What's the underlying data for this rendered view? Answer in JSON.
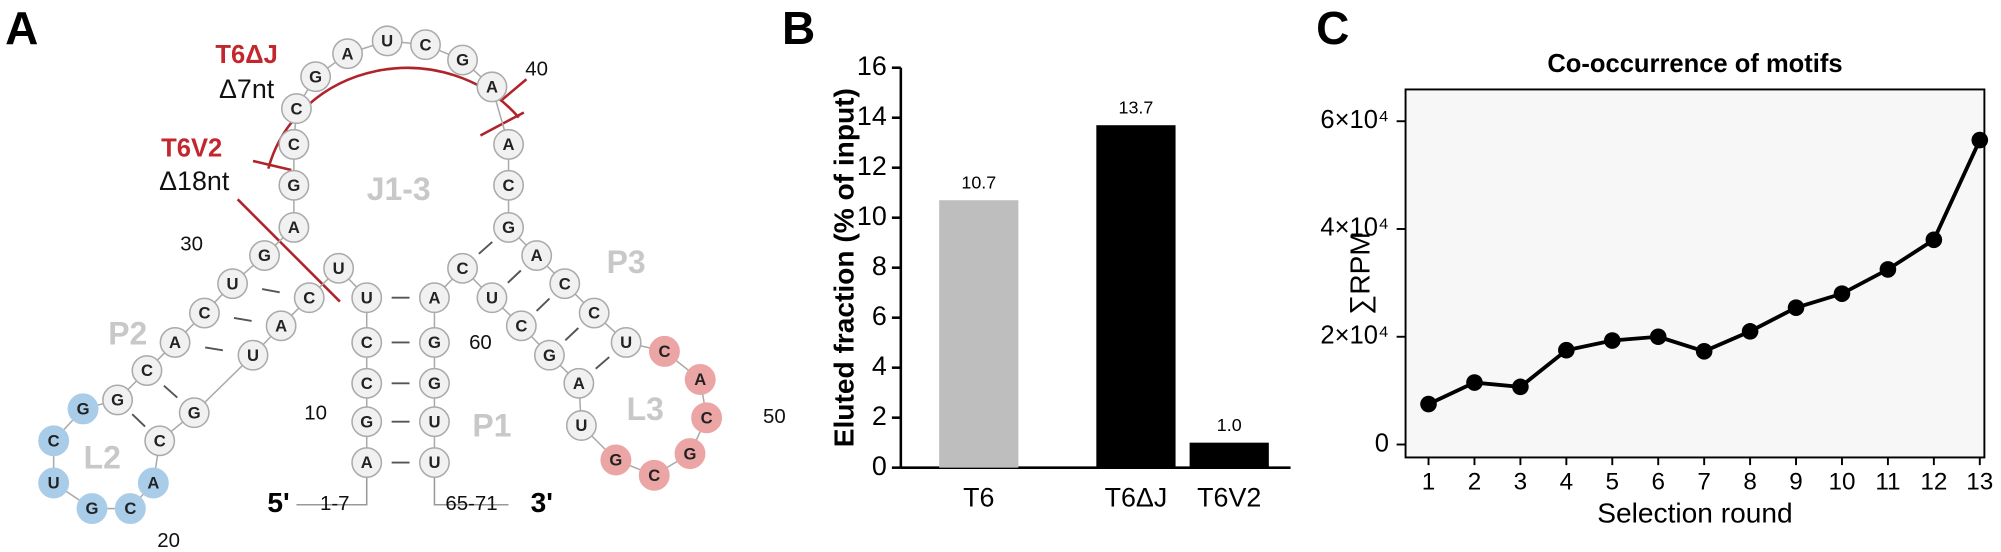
{
  "diagram": {
    "panel": "A",
    "constructs": [
      {
        "name": "T6ΔJ",
        "deletion": "Δ7nt"
      },
      {
        "name": "T6V2",
        "deletion": "Δ18nt"
      }
    ],
    "regions": [
      "J1-3",
      "P1",
      "P2",
      "P3",
      "L2",
      "L3"
    ],
    "ends": [
      "5'",
      "3'"
    ],
    "end_ranges": [
      "1-7",
      "65-71"
    ],
    "position_labels": [
      "10",
      "20",
      "30",
      "40",
      "50",
      "60"
    ],
    "nucleotides": [
      {
        "base": "A"
      },
      {
        "base": "G"
      },
      {
        "base": "C"
      },
      {
        "base": "C"
      },
      {
        "base": "U"
      },
      {
        "base": "U"
      },
      {
        "base": "C"
      },
      {
        "base": "A"
      },
      {
        "base": "U"
      },
      {
        "base": "G"
      },
      {
        "base": "C"
      },
      {
        "base": "A",
        "color": "#a9cde9"
      },
      {
        "base": "C",
        "color": "#a9cde9"
      },
      {
        "base": "G",
        "color": "#a9cde9"
      },
      {
        "base": "U",
        "color": "#a9cde9"
      },
      {
        "base": "C",
        "color": "#a9cde9"
      },
      {
        "base": "G",
        "color": "#a9cde9"
      },
      {
        "base": "G"
      },
      {
        "base": "C"
      },
      {
        "base": "A"
      },
      {
        "base": "C"
      },
      {
        "base": "U"
      },
      {
        "base": "G"
      },
      {
        "base": "A"
      },
      {
        "base": "G"
      },
      {
        "base": "C"
      },
      {
        "base": "C"
      },
      {
        "base": "G"
      },
      {
        "base": "A"
      },
      {
        "base": "U"
      },
      {
        "base": "C"
      },
      {
        "base": "G"
      },
      {
        "base": "A"
      },
      {
        "base": "A"
      },
      {
        "base": "C"
      },
      {
        "base": "G"
      },
      {
        "base": "A"
      },
      {
        "base": "C"
      },
      {
        "base": "C"
      },
      {
        "base": "U"
      },
      {
        "base": "C",
        "color": "#eca5a5"
      },
      {
        "base": "A",
        "color": "#eca5a5"
      },
      {
        "base": "C",
        "color": "#eca5a5"
      },
      {
        "base": "G",
        "color": "#eca5a5"
      },
      {
        "base": "C",
        "color": "#eca5a5"
      },
      {
        "base": "G",
        "color": "#eca5a5"
      },
      {
        "base": "U"
      },
      {
        "base": "A"
      },
      {
        "base": "G"
      },
      {
        "base": "C"
      },
      {
        "base": "U"
      },
      {
        "base": "C"
      },
      {
        "base": "A"
      },
      {
        "base": "G"
      },
      {
        "base": "G"
      },
      {
        "base": "U"
      },
      {
        "base": "U"
      }
    ]
  },
  "chart_data": [
    {
      "type": "bar",
      "panel": "B",
      "ylabel": "Eluted fraction (% of input)",
      "categories": [
        "T6",
        "T6ΔJ",
        "T6V2"
      ],
      "values": [
        10.7,
        13.7,
        1.0
      ],
      "value_labels": [
        "10.7",
        "13.7",
        "1.0"
      ],
      "colors": [
        "#bebebe",
        "#000000",
        "#000000"
      ],
      "ylim": [
        0,
        16
      ],
      "yticks": [
        0,
        2,
        4,
        6,
        8,
        10,
        12,
        14,
        16
      ]
    },
    {
      "type": "line",
      "panel": "C",
      "title": "Co-occurrence of motifs",
      "xlabel": "Selection round",
      "ylabel": "∑RPM",
      "x": [
        1,
        2,
        3,
        4,
        5,
        6,
        7,
        8,
        9,
        10,
        11,
        12,
        13
      ],
      "values": [
        7500,
        11500,
        10700,
        17500,
        19300,
        20000,
        17300,
        21000,
        25400,
        28000,
        32500,
        38000,
        56500
      ],
      "color": "#000000",
      "background": "#f7f7f7",
      "xlim": [
        0.5,
        13.1
      ],
      "xticks": [
        1,
        2,
        3,
        4,
        5,
        6,
        7,
        8,
        9,
        10,
        11,
        12,
        13
      ],
      "ylim": [
        -2400,
        65900
      ],
      "yticks": [
        0,
        {
          "value": 20000,
          "label": "2×10⁴"
        },
        {
          "value": 40000,
          "label": "4×10⁴"
        },
        {
          "value": 60000,
          "label": "6×10⁴"
        }
      ]
    }
  ]
}
